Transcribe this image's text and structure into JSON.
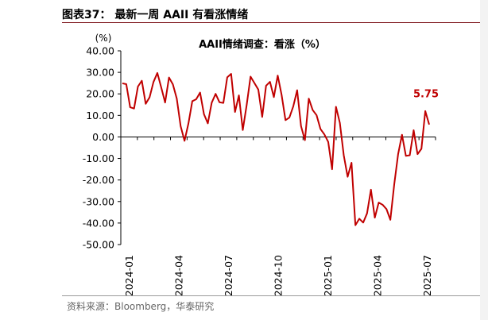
{
  "figure": {
    "title": "图表37：  最新一周 AAII 有看涨情绪",
    "source": "资料来源：Bloomberg，华泰研究"
  },
  "chart_data": {
    "type": "line",
    "title": "AAII情绪调查：看涨（%）",
    "ylabel": "(%)",
    "xlabel": "",
    "ylim": [
      -50,
      40
    ],
    "yticks": [
      "40.00",
      "30.00",
      "20.00",
      "10.00",
      "0.00",
      "-10.00",
      "-20.00",
      "-30.00",
      "-40.00",
      "-50.00"
    ],
    "xticks": [
      "2024-01",
      "2024-04",
      "2024-07",
      "2024-10",
      "2025-01",
      "2025-04",
      "2025-07"
    ],
    "x_start": "2024-01",
    "x_end": "2025-07",
    "annotation": "5.75",
    "line_color": "#c00000",
    "grid": false,
    "series": [
      {
        "name": "",
        "values": [
          24.9,
          24.5,
          13.8,
          13.2,
          23.4,
          26.1,
          15.4,
          18.4,
          25.5,
          29.7,
          23.0,
          16.0,
          27.6,
          24.4,
          17.8,
          5.0,
          -1.8,
          6.2,
          16.6,
          17.5,
          20.6,
          10.6,
          6.3,
          15.9,
          20.0,
          16.1,
          15.8,
          27.7,
          29.3,
          11.6,
          19.3,
          3.2,
          14.8,
          28.0,
          25.0,
          22.0,
          9.3,
          23.8,
          25.6,
          18.5,
          28.5,
          19.5,
          7.8,
          9.0,
          14.2,
          21.7,
          5.0,
          -1.5,
          17.8,
          12.5,
          10.1,
          3.7,
          1.2,
          -2.3,
          -15.0,
          14.0,
          6.5,
          -8.5,
          -18.5,
          -12.0,
          -41.0,
          -38.0,
          -39.8,
          -35.5,
          -24.5,
          -37.5,
          -30.5,
          -31.5,
          -33.5,
          -38.5,
          -22.0,
          -8.0,
          1.0,
          -8.8,
          -8.5,
          3.1,
          -8.0,
          -5.5,
          12.0,
          5.75
        ]
      }
    ]
  }
}
